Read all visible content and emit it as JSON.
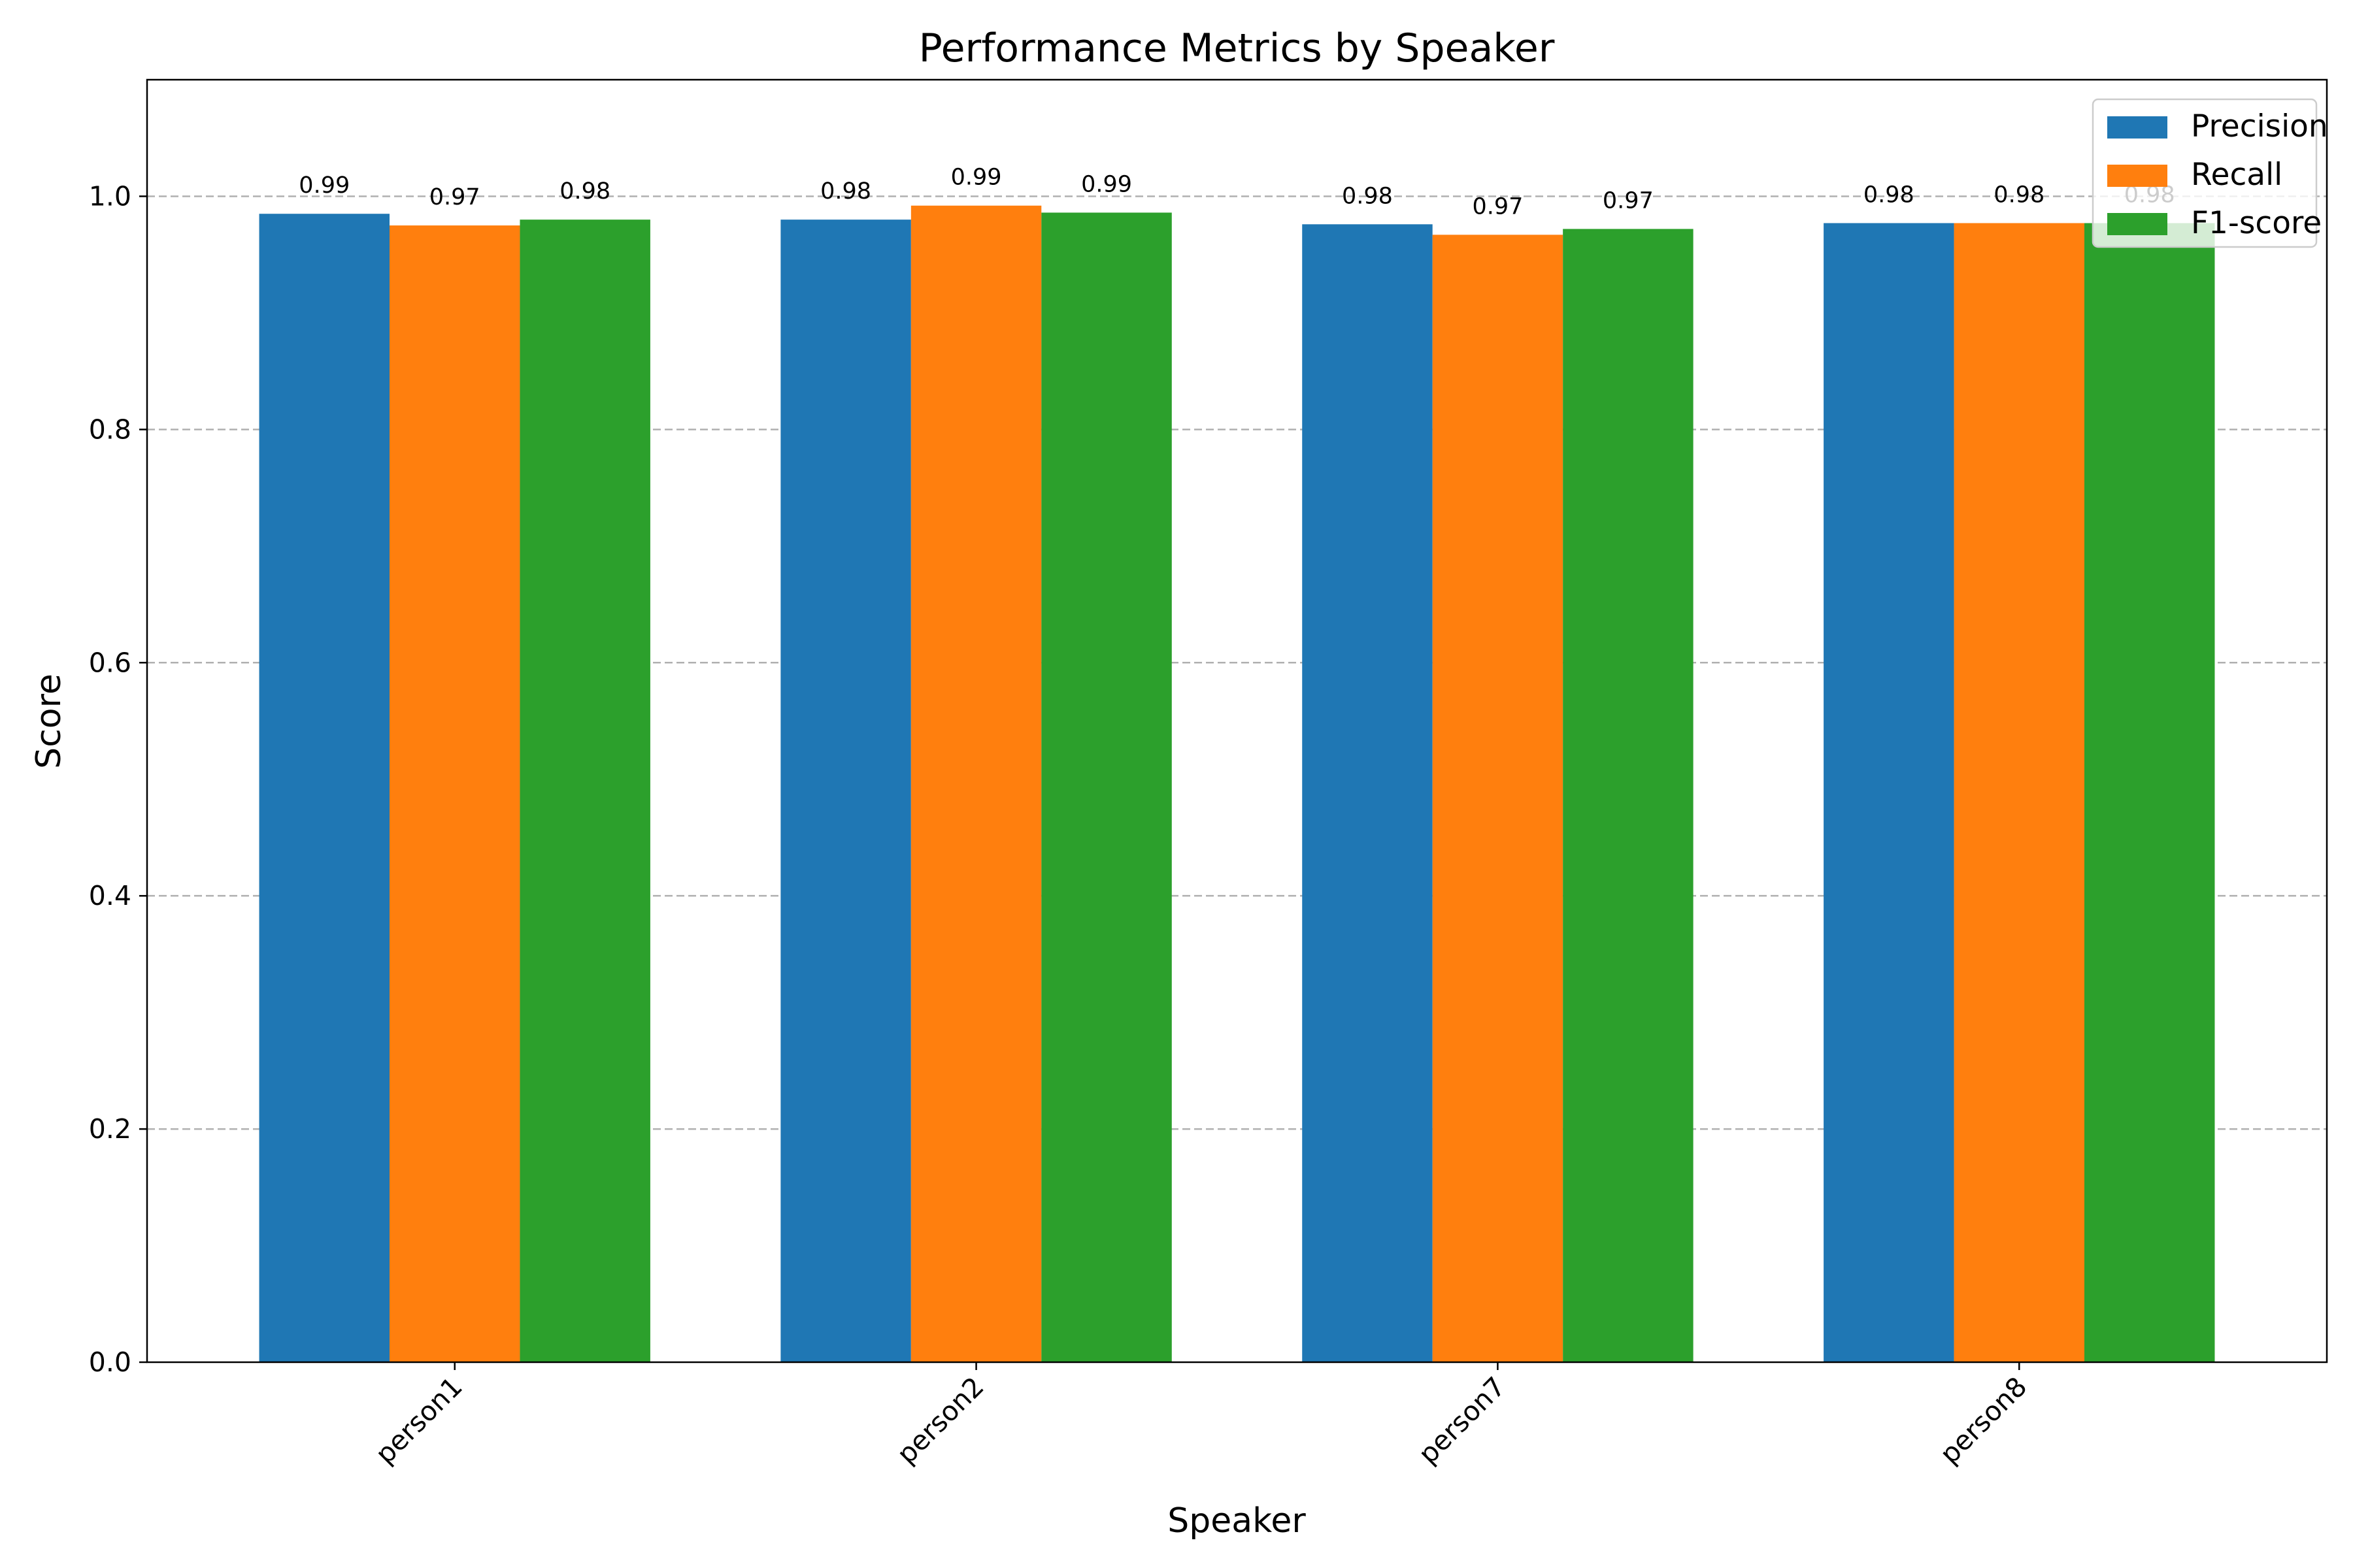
{
  "chart_data": {
    "type": "bar",
    "title": "Performance Metrics by Speaker",
    "xlabel": "Speaker",
    "ylabel": "Score",
    "categories": [
      "person1",
      "person2",
      "person7",
      "person8"
    ],
    "series": [
      {
        "name": "Precision",
        "color": "#1f77b4",
        "values": [
          0.985,
          0.98,
          0.976,
          0.977
        ],
        "labels": [
          "0.99",
          "0.98",
          "0.98",
          "0.98"
        ]
      },
      {
        "name": "Recall",
        "color": "#ff7f0e",
        "values": [
          0.975,
          0.992,
          0.967,
          0.977
        ],
        "labels": [
          "0.97",
          "0.99",
          "0.97",
          "0.98"
        ]
      },
      {
        "name": "F1-score",
        "color": "#2ca02c",
        "values": [
          0.98,
          0.986,
          0.972,
          0.977
        ],
        "labels": [
          "0.98",
          "0.99",
          "0.97",
          "0.98"
        ]
      }
    ],
    "ylim": [
      0,
      1.1
    ],
    "yticks": [
      0.0,
      0.2,
      0.4,
      0.6,
      0.8,
      1.0
    ],
    "ytick_labels": [
      "0.0",
      "0.2",
      "0.4",
      "0.6",
      "0.8",
      "1.0"
    ],
    "grid": "y-dashed",
    "legend_position": "upper-right",
    "xtick_rotation": "45deg"
  }
}
